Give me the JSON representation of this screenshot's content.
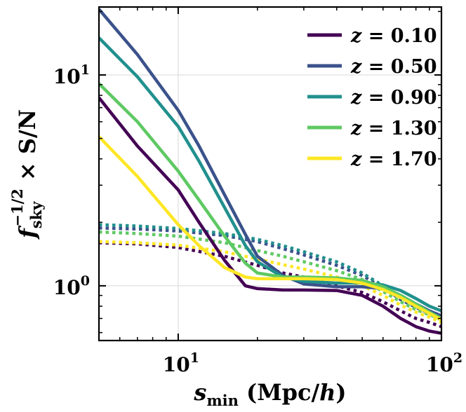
{
  "chart_data": {
    "type": "line",
    "title": "",
    "xlabel": {
      "base": "s",
      "sub": "min",
      "rest": " (Mpc/",
      "italic": "h",
      "close": ")"
    },
    "ylabel": {
      "base": "f",
      "sub": "sky",
      "sup": "−1/2",
      "rest": " × S/N"
    },
    "xscale": "log",
    "yscale": "log",
    "xlim": [
      5,
      100
    ],
    "ylim": [
      0.55,
      21
    ],
    "grid": true,
    "legend_position": "top-right",
    "x_ticks": [
      {
        "value": 10,
        "base": "10",
        "exp": "1"
      },
      {
        "value": 100,
        "base": "10",
        "exp": "2"
      }
    ],
    "y_ticks": [
      {
        "value": 1,
        "base": "10",
        "exp": "0"
      },
      {
        "value": 10,
        "base": "10",
        "exp": "1"
      }
    ],
    "series": [
      {
        "name": "z = 0.10",
        "label_var": "z",
        "label_eq": " = ",
        "label_val": "0.10",
        "color": "#440154",
        "solid": {
          "x": [
            5,
            7,
            10,
            12,
            15,
            18,
            20,
            25,
            30,
            40,
            50,
            60,
            70,
            80,
            90,
            100
          ],
          "y": [
            7.8,
            4.6,
            2.85,
            2.0,
            1.32,
            1.0,
            0.97,
            0.955,
            0.955,
            0.95,
            0.9,
            0.8,
            0.7,
            0.64,
            0.61,
            0.595
          ]
        },
        "dotted": {
          "x": [
            5,
            7,
            10,
            15,
            20,
            25,
            30,
            40,
            50,
            60,
            70,
            80,
            90,
            100
          ],
          "y": [
            1.6,
            1.58,
            1.52,
            1.38,
            1.25,
            1.15,
            1.1,
            1.0,
            0.93,
            0.84,
            0.76,
            0.7,
            0.67,
            0.64
          ]
        }
      },
      {
        "name": "z = 0.50",
        "label_var": "z",
        "label_eq": " = ",
        "label_val": "0.50",
        "color": "#3b528b",
        "solid": {
          "x": [
            5,
            7,
            10,
            12,
            15,
            18,
            20,
            25,
            30,
            40,
            50,
            60,
            70,
            80,
            90,
            100
          ],
          "y": [
            20.5,
            12.5,
            6.8,
            4.6,
            2.7,
            1.75,
            1.38,
            1.12,
            1.02,
            0.99,
            0.99,
            0.97,
            0.9,
            0.82,
            0.76,
            0.72
          ]
        },
        "dotted": {
          "x": [
            5,
            7,
            10,
            15,
            20,
            25,
            30,
            40,
            50,
            60,
            70,
            80,
            90,
            100
          ],
          "y": [
            1.88,
            1.86,
            1.82,
            1.73,
            1.62,
            1.5,
            1.4,
            1.25,
            1.12,
            0.98,
            0.86,
            0.79,
            0.74,
            0.7
          ]
        }
      },
      {
        "name": "z = 0.90",
        "label_var": "z",
        "label_eq": " = ",
        "label_val": "0.90",
        "color": "#21908d",
        "solid": {
          "x": [
            5,
            7,
            10,
            12,
            15,
            18,
            20,
            25,
            30,
            40,
            50,
            60,
            70,
            80,
            90,
            100
          ],
          "y": [
            15.0,
            9.8,
            5.7,
            3.9,
            2.35,
            1.55,
            1.3,
            1.1,
            1.05,
            1.03,
            1.03,
            1.01,
            0.95,
            0.87,
            0.8,
            0.76
          ]
        },
        "dotted": {
          "x": [
            5,
            7,
            10,
            15,
            20,
            25,
            30,
            40,
            50,
            60,
            70,
            80,
            90,
            100
          ],
          "y": [
            1.95,
            1.92,
            1.87,
            1.77,
            1.66,
            1.55,
            1.45,
            1.3,
            1.15,
            1.0,
            0.88,
            0.8,
            0.76,
            0.72
          ]
        }
      },
      {
        "name": "z = 1.30",
        "label_var": "z",
        "label_eq": " = ",
        "label_val": "1.30",
        "color": "#5ec962",
        "solid": {
          "x": [
            5,
            7,
            10,
            12,
            15,
            18,
            20,
            25,
            30,
            40,
            50,
            60,
            70,
            80,
            90,
            100
          ],
          "y": [
            9.1,
            6.0,
            3.5,
            2.55,
            1.72,
            1.28,
            1.15,
            1.1,
            1.1,
            1.09,
            1.06,
            0.99,
            0.9,
            0.82,
            0.75,
            0.7
          ]
        },
        "dotted": {
          "x": [
            5,
            7,
            10,
            15,
            20,
            25,
            30,
            40,
            50,
            60,
            70,
            80,
            90,
            100
          ],
          "y": [
            1.8,
            1.77,
            1.72,
            1.6,
            1.47,
            1.38,
            1.3,
            1.18,
            1.07,
            0.94,
            0.84,
            0.77,
            0.73,
            0.69
          ]
        }
      },
      {
        "name": "z = 1.70",
        "label_var": "z",
        "label_eq": " = ",
        "label_val": "1.70",
        "color": "#fde725",
        "solid": {
          "x": [
            5,
            7,
            10,
            12,
            15,
            18,
            20,
            25,
            30,
            40,
            50,
            60,
            70,
            80,
            90,
            100
          ],
          "y": [
            5.1,
            3.3,
            1.95,
            1.55,
            1.22,
            1.1,
            1.08,
            1.08,
            1.08,
            1.07,
            1.03,
            0.96,
            0.88,
            0.8,
            0.74,
            0.69
          ]
        },
        "dotted": {
          "x": [
            5,
            7,
            10,
            15,
            20,
            25,
            30,
            40,
            50,
            60,
            70,
            80,
            90,
            100
          ],
          "y": [
            1.62,
            1.6,
            1.56,
            1.45,
            1.34,
            1.26,
            1.2,
            1.1,
            1.0,
            0.9,
            0.81,
            0.75,
            0.71,
            0.67
          ]
        }
      }
    ]
  }
}
